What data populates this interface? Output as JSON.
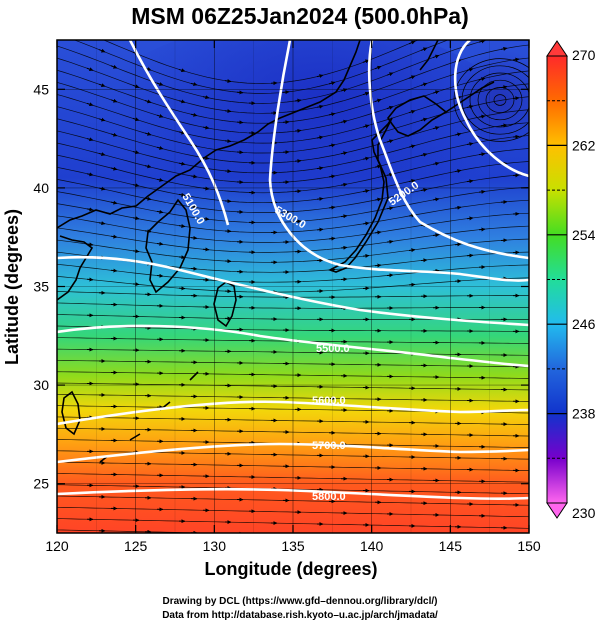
{
  "chart_data": {
    "type": "heatmap",
    "title": "MSM 06Z25Jan2024 (500.0hPa)",
    "xlabel": "Longitude (degrees)",
    "ylabel": "Latitude  (degrees)",
    "xlim": [
      120,
      150
    ],
    "ylim": [
      22.5,
      47.5
    ],
    "xticks": [
      120,
      125,
      130,
      135,
      140,
      145,
      150
    ],
    "yticks": [
      25,
      30,
      35,
      40,
      45
    ],
    "colorbar": {
      "min": 230,
      "max": 270,
      "ticks": [
        230,
        238,
        246,
        254,
        262,
        270
      ],
      "dashed_ticks": [
        234,
        242,
        250,
        258,
        266
      ],
      "colors": [
        "#ff66ee",
        "#7700cc",
        "#1133cc",
        "#2288ee",
        "#22ddee",
        "#22dd66",
        "#88dd00",
        "#ffe000",
        "#ff9900",
        "#ff3300",
        "#ff3333"
      ]
    },
    "contours": [
      {
        "label": "5100.0",
        "value": 5100
      },
      {
        "label": "5200.0",
        "value": 5200
      },
      {
        "label": "5300.0",
        "value": 5300
      },
      {
        "label": "5500.0",
        "value": 5500
      },
      {
        "label": "5600.0",
        "value": 5600
      },
      {
        "label": "5700.0",
        "value": 5700
      },
      {
        "label": "5800.0",
        "value": 5800
      }
    ]
  },
  "credits": {
    "line1": "Drawing by DCL (https://www.gfd–dennou.org/library/dcl/)",
    "line2": "Data from http://database.rish.kyoto–u.ac.jp/arch/jmadata/"
  }
}
